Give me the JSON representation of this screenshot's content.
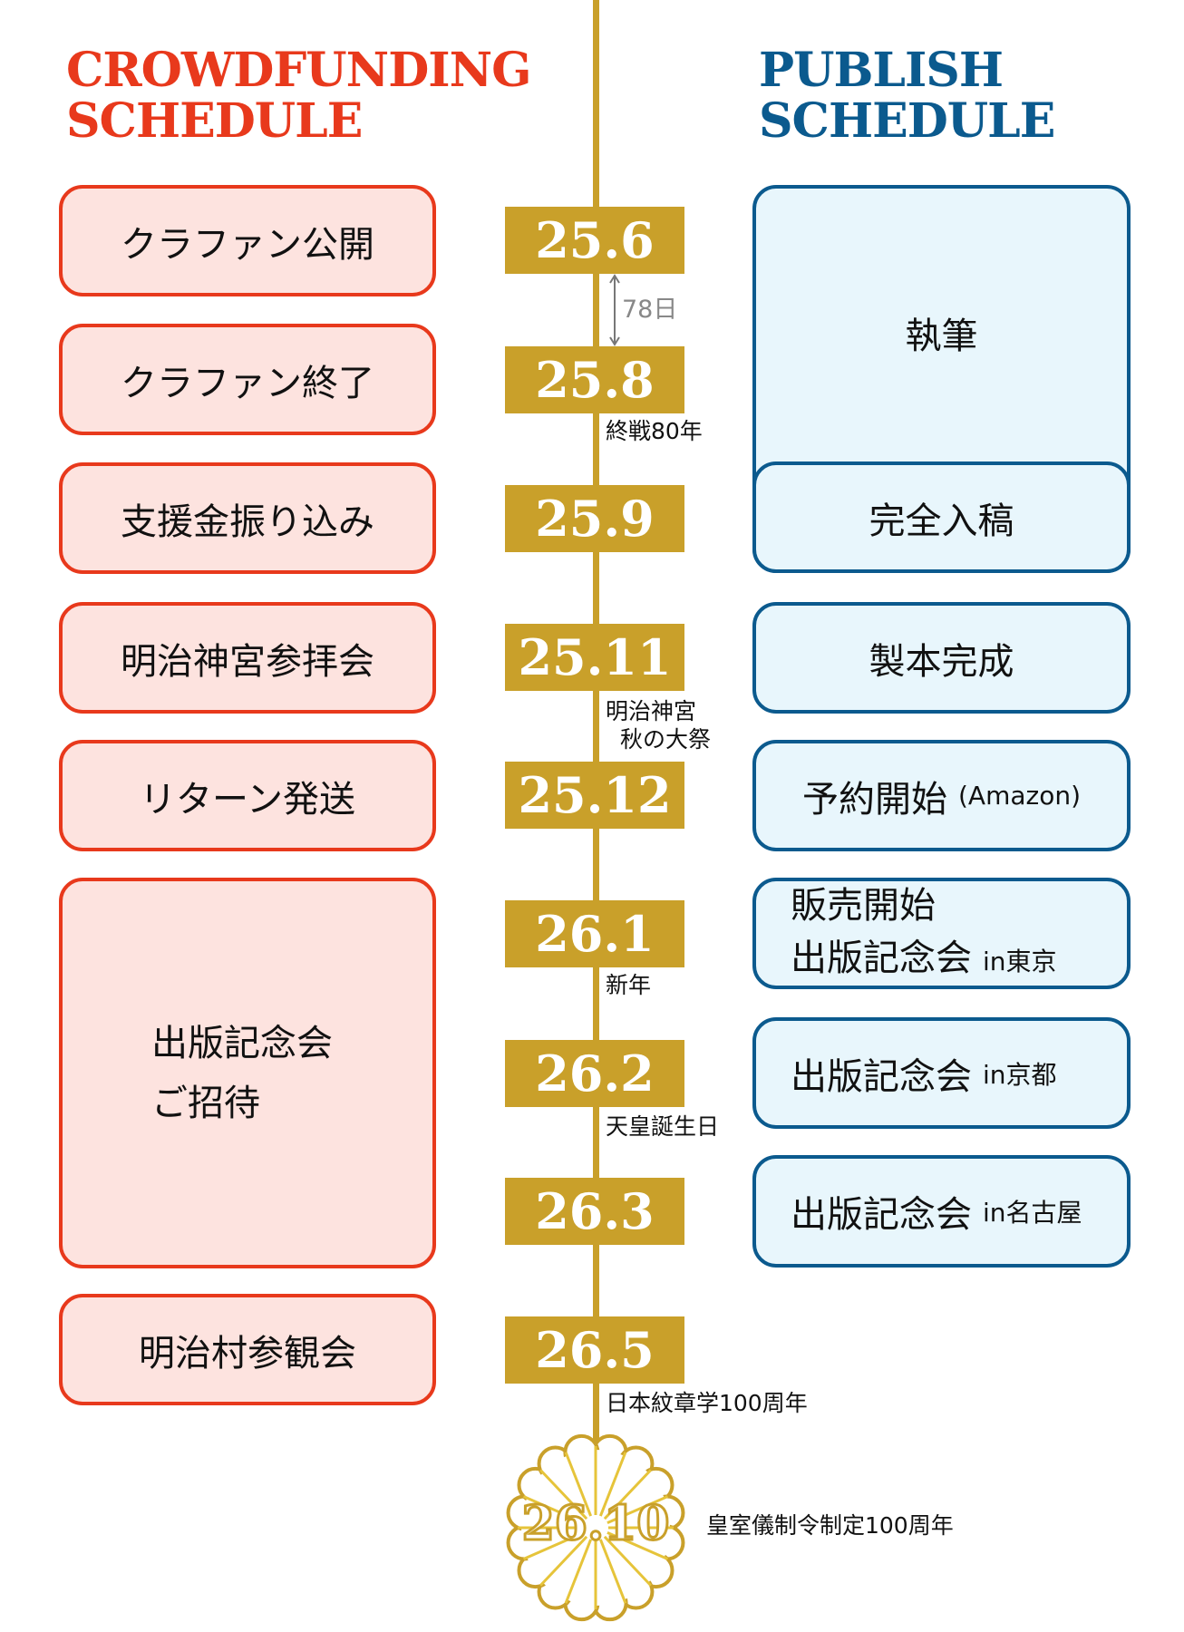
{
  "headers": {
    "crowdfunding": [
      "CROWDFUNDING",
      "SCHEDULE"
    ],
    "publish": [
      "PUBLISH",
      "SCHEDULE"
    ]
  },
  "dates": [
    "25.6",
    "25.8",
    "25.9",
    "25.11",
    "25.12",
    "26.1",
    "26.2",
    "26.3",
    "26.5"
  ],
  "final_date": "26.10",
  "crowdfunding": [
    "クラファン公開",
    "クラファン終了",
    "支援金振り込み",
    "明治神宮参拝会",
    "リターン発送",
    [
      "出版記念会",
      "ご招待"
    ],
    "明治村参観会"
  ],
  "publish": {
    "writing": "執筆",
    "submission": "完全入稿",
    "bound": "製本完成",
    "preorder": {
      "main": "予約開始",
      "sub": "(Amazon)"
    },
    "release": {
      "line1": "販売開始",
      "line2": "出版記念会",
      "sub": "in東京"
    },
    "kyoto": {
      "main": "出版記念会",
      "sub": "in京都"
    },
    "nagoya": {
      "main": "出版記念会",
      "sub": "in名古屋"
    }
  },
  "notes": {
    "duration": "78日",
    "end_war": "終戦80年",
    "meiji_1": "明治神宮",
    "meiji_2": "秋の大祭",
    "new_year": "新年",
    "emperor": "天皇誕生日",
    "heraldry": "日本紋章学100周年",
    "ceremony": "皇室儀制令制定100周年"
  },
  "colors": {
    "crowdfunding": "#e8391c",
    "crowdfunding_bg": "#fde3df",
    "publish": "#0b5a8e",
    "publish_bg": "#e8f6fc",
    "timeline": "#c9a02a"
  },
  "icons": {
    "final_marker": "chrysanthemum-crest-icon",
    "duration": "double-arrow-icon"
  }
}
